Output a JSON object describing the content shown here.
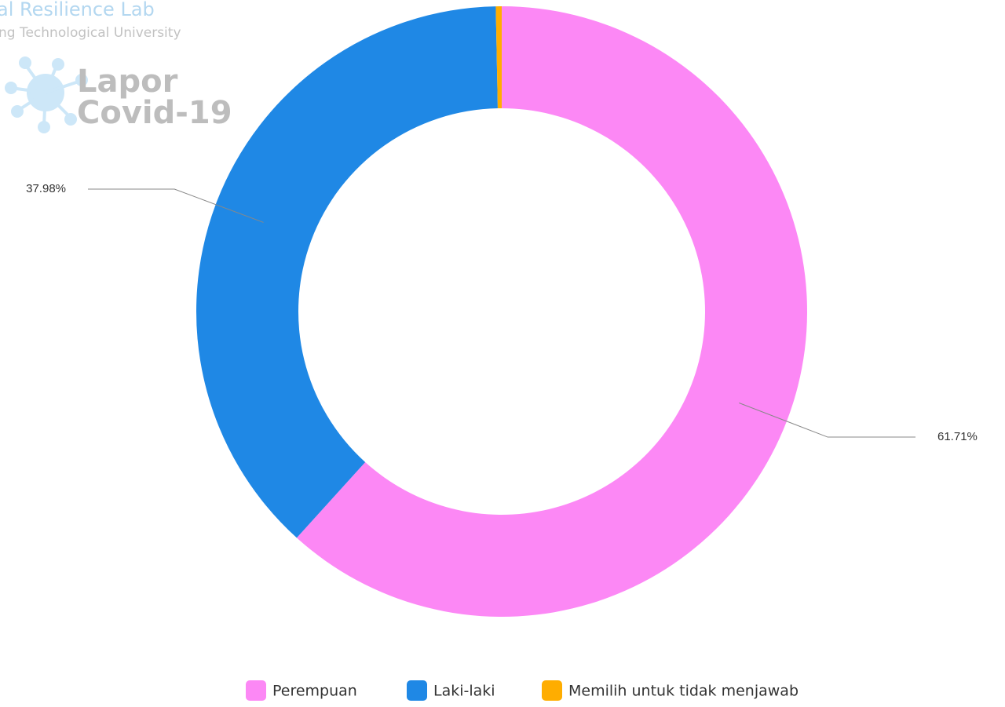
{
  "watermark": [
    "al Resilience Lab",
    "ng Technological University",
    "Lapor",
    "Covid-19"
  ],
  "chart_data": {
    "type": "donut",
    "categories": [
      "Perempuan",
      "Laki-laki",
      "Memilih untuk tidak menjawab"
    ],
    "values": [
      61.71,
      37.98,
      0.31
    ],
    "value_labels": [
      "61.71%",
      "37.98%",
      null
    ],
    "colors": [
      "#fc88f5",
      "#1f88e5",
      "#ffad00"
    ],
    "legend": "bottom"
  }
}
